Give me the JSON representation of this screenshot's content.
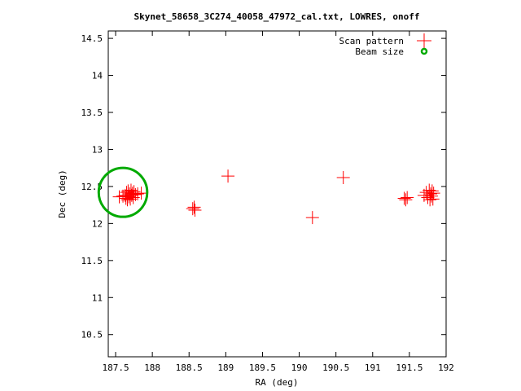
{
  "chart_data": {
    "type": "scatter",
    "title": "Skynet_58658_3C274_40058_47972_cal.txt, LOWRES, onoff",
    "xlabel": "RA (deg)",
    "ylabel": "Dec (deg)",
    "xlim": [
      187.4,
      192.0
    ],
    "ylim": [
      10.2,
      14.6
    ],
    "x_ticks": [
      "187.5",
      "188",
      "188.5",
      "189",
      "189.5",
      "190",
      "190.5",
      "191",
      "191.5",
      "192"
    ],
    "y_ticks": [
      "10.5",
      "11",
      "11.5",
      "12",
      "12.5",
      "13",
      "13.5",
      "14",
      "14.5"
    ],
    "legend_position": "top-right",
    "series": [
      {
        "name": "Scan pattern",
        "color": "#ff0000",
        "marker": "plus",
        "points": [
          [
            187.55,
            12.36
          ],
          [
            187.6,
            12.37
          ],
          [
            187.63,
            12.38
          ],
          [
            187.64,
            12.34
          ],
          [
            187.65,
            12.42
          ],
          [
            187.66,
            12.32
          ],
          [
            187.67,
            12.44
          ],
          [
            187.68,
            12.36
          ],
          [
            187.69,
            12.4
          ],
          [
            187.7,
            12.33
          ],
          [
            187.71,
            12.45
          ],
          [
            187.72,
            12.38
          ],
          [
            187.73,
            12.41
          ],
          [
            187.74,
            12.35
          ],
          [
            187.75,
            12.43
          ],
          [
            187.77,
            12.39
          ],
          [
            187.8,
            12.4
          ],
          [
            187.85,
            12.41
          ],
          [
            188.55,
            12.2
          ],
          [
            188.57,
            12.22
          ],
          [
            188.58,
            12.18
          ],
          [
            189.03,
            12.64
          ],
          [
            190.18,
            12.08
          ],
          [
            190.6,
            12.62
          ],
          [
            191.43,
            12.34
          ],
          [
            191.45,
            12.32
          ],
          [
            191.47,
            12.35
          ],
          [
            191.7,
            12.38
          ],
          [
            191.73,
            12.42
          ],
          [
            191.75,
            12.35
          ],
          [
            191.77,
            12.45
          ],
          [
            191.78,
            12.32
          ],
          [
            191.79,
            12.4
          ],
          [
            191.8,
            12.37
          ],
          [
            191.81,
            12.44
          ],
          [
            191.82,
            12.33
          ],
          [
            191.83,
            12.41
          ]
        ]
      },
      {
        "name": "Beam size",
        "color": "#00aa00",
        "marker": "circle",
        "center": [
          187.6,
          12.42
        ],
        "radius_deg": 0.33
      }
    ]
  }
}
